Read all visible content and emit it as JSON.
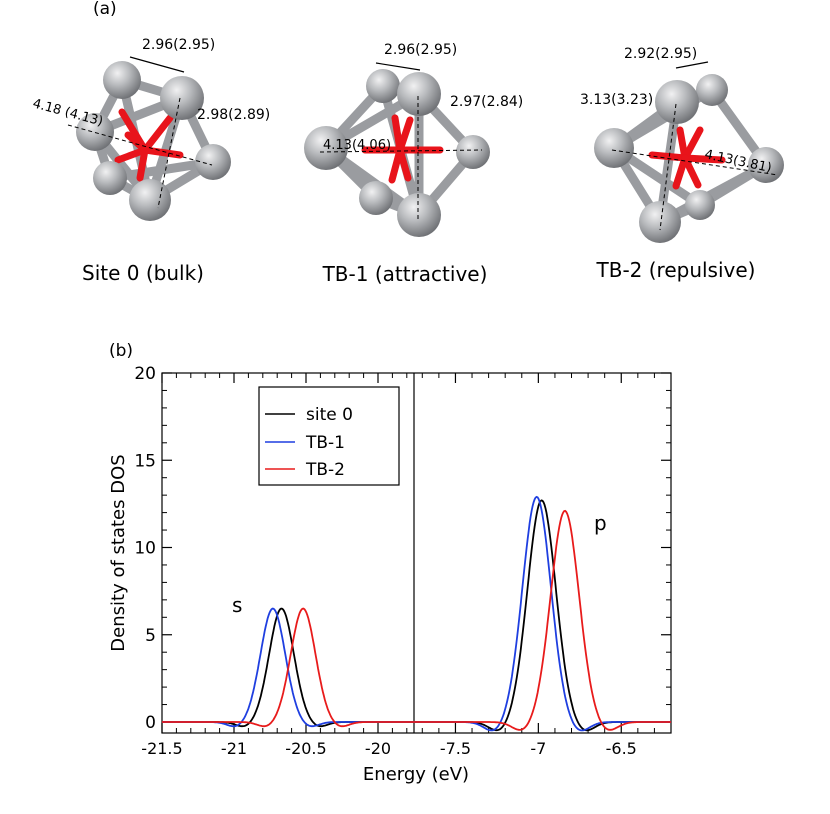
{
  "panel_a": {
    "label": "(a)",
    "clusters": [
      {
        "caption": "Site 0 (bulk)",
        "bond_labels": [
          "2.96(2.95)",
          "4.18 (4.13)",
          "2.98(2.89)"
        ]
      },
      {
        "caption": "TB-1 (attractive)",
        "bond_labels": [
          "2.96(2.95)",
          "2.97(2.84)",
          "4.13(4.06)"
        ]
      },
      {
        "caption": "TB-2 (repulsive)",
        "bond_labels": [
          "2.92(2.95)",
          "3.13(3.23)",
          "4.13(3.81)"
        ]
      }
    ],
    "colors": {
      "atom": "#a9abae",
      "central_bonds": "#e8141b"
    }
  },
  "panel_b": {
    "label": "(b)"
  },
  "chart_data": {
    "type": "line",
    "xlabel": "Energy (eV)",
    "ylabel": "Density of states DOS",
    "ylim": [
      0,
      20
    ],
    "yticks": [
      0,
      5,
      10,
      15,
      20
    ],
    "grid": false,
    "legend_position": "top-left of left subplot",
    "subplots": [
      {
        "band_label": "s",
        "xlim": [
          -21.5,
          -19.75
        ],
        "xticks": [
          -21.5,
          -21,
          -20.5,
          -20
        ],
        "xtick_labels": [
          "-21.5",
          "-21",
          "-20.5",
          "-20"
        ],
        "series": [
          {
            "name": "site 0",
            "color": "#000000",
            "peak_x": -20.67,
            "peak_y": 6.5,
            "sigma": 0.085
          },
          {
            "name": "TB-1",
            "color": "#1f3fe0",
            "peak_x": -20.73,
            "peak_y": 6.5,
            "sigma": 0.085
          },
          {
            "name": "TB-2",
            "color": "#e81b1b",
            "peak_x": -20.52,
            "peak_y": 6.5,
            "sigma": 0.085
          }
        ]
      },
      {
        "band_label": "p",
        "xlim": [
          -7.75,
          -6.2
        ],
        "xticks": [
          -7.5,
          -7,
          -6.5
        ],
        "xtick_labels": [
          "-7.5",
          "-7",
          "-6.5"
        ],
        "series": [
          {
            "name": "site 0",
            "color": "#000000",
            "peak_x": -6.98,
            "peak_y": 12.7,
            "sigma": 0.085
          },
          {
            "name": "TB-1",
            "color": "#1f3fe0",
            "peak_x": -7.01,
            "peak_y": 12.9,
            "sigma": 0.085
          },
          {
            "name": "TB-2",
            "color": "#e81b1b",
            "peak_x": -6.84,
            "peak_y": 12.1,
            "sigma": 0.085
          }
        ]
      }
    ],
    "legend": [
      "site 0",
      "TB-1",
      "TB-2"
    ]
  }
}
